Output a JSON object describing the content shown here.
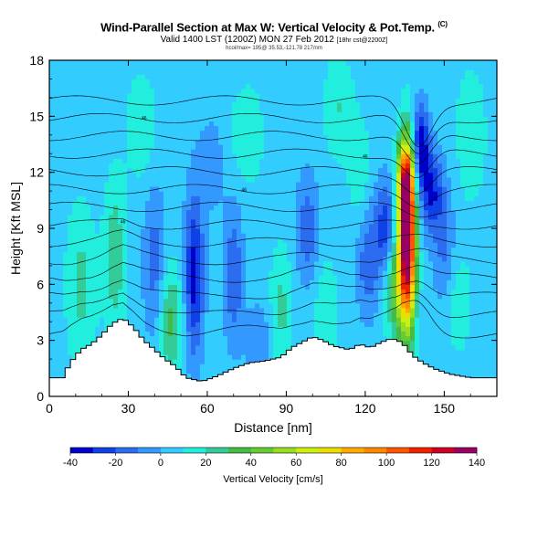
{
  "header": {
    "title": "Wind-Parallel Section at Max W: Vertical Velocity & Pot.Temp.",
    "title_mark": "(C)",
    "valid": "Valid 1400 LST (1200Z) MON 27 Feb 2012",
    "valid_small": "[18hr cst@2200Z]",
    "info": "hcol/max= 195@ 35.53,-121.78 217/nm"
  },
  "chart_data": {
    "type": "heatmap",
    "title": "Wind-Parallel Section at Max W: Vertical Velocity & Pot.Temp.",
    "xlabel": "Distance [nm]",
    "ylabel": "Height [Kft MSL]",
    "xlim": [
      0,
      170
    ],
    "ylim": [
      0,
      18
    ],
    "xticks": [
      0,
      30,
      60,
      90,
      120,
      150
    ],
    "yticks": [
      0,
      3,
      6,
      9,
      12,
      15,
      18
    ],
    "colorbar": {
      "title": "Vertical Velocity [cm/s]",
      "levels": [
        -40,
        -30,
        -20,
        -10,
        0,
        10,
        20,
        30,
        40,
        50,
        60,
        70,
        80,
        90,
        100,
        110,
        120,
        130,
        140
      ],
      "tick_labels": [
        "-40",
        "-20",
        "0",
        "20",
        "40",
        "60",
        "80",
        "100",
        "120",
        "140"
      ],
      "colors": [
        "#0000cc",
        "#1040e8",
        "#2b6cf0",
        "#3399ff",
        "#33ccff",
        "#22eedd",
        "#33cc99",
        "#44bb44",
        "#66cc33",
        "#99dd22",
        "#ccee11",
        "#eedd00",
        "#ffaa00",
        "#ff8800",
        "#ff5500",
        "#ee2200",
        "#cc0022",
        "#990066"
      ]
    },
    "terrain": [
      [
        0,
        1
      ],
      [
        5,
        1
      ],
      [
        8,
        1.8
      ],
      [
        12,
        2.5
      ],
      [
        16,
        2.8
      ],
      [
        20,
        3.3
      ],
      [
        24,
        3.9
      ],
      [
        28,
        4.2
      ],
      [
        32,
        3.7
      ],
      [
        36,
        3.0
      ],
      [
        40,
        2.5
      ],
      [
        44,
        2.0
      ],
      [
        48,
        1.6
      ],
      [
        52,
        1.0
      ],
      [
        58,
        0.8
      ],
      [
        64,
        1.1
      ],
      [
        70,
        1.5
      ],
      [
        76,
        1.8
      ],
      [
        82,
        1.9
      ],
      [
        88,
        2.1
      ],
      [
        92,
        2.6
      ],
      [
        96,
        2.9
      ],
      [
        100,
        3.2
      ],
      [
        104,
        3.0
      ],
      [
        108,
        2.7
      ],
      [
        114,
        2.5
      ],
      [
        118,
        2.8
      ],
      [
        122,
        2.6
      ],
      [
        126,
        2.9
      ],
      [
        130,
        3.1
      ],
      [
        134,
        2.9
      ],
      [
        138,
        2.2
      ],
      [
        142,
        1.8
      ],
      [
        146,
        1.5
      ],
      [
        152,
        1.2
      ],
      [
        160,
        1.0
      ],
      [
        170,
        1.0
      ]
    ],
    "w_blobs": [
      {
        "x": 136,
        "y": 8.5,
        "w": 140,
        "sx": 2.2,
        "sy": 3.2
      },
      {
        "x": 135,
        "y": 11.5,
        "w": 60,
        "sx": 2.2,
        "sy": 1.5
      },
      {
        "x": 132,
        "y": 6.2,
        "w": 40,
        "sx": 3,
        "sy": 2.2
      },
      {
        "x": 141,
        "y": 13.5,
        "w": -45,
        "sx": 2.2,
        "sy": 1.5
      },
      {
        "x": 145,
        "y": 11.0,
        "w": -35,
        "sx": 3,
        "sy": 1.5
      },
      {
        "x": 128,
        "y": 9.0,
        "w": -35,
        "sx": 3,
        "sy": 1.8
      },
      {
        "x": 121,
        "y": 7.2,
        "w": -22,
        "sx": 3,
        "sy": 2.0
      },
      {
        "x": 150,
        "y": 8.0,
        "w": -18,
        "sx": 3,
        "sy": 2.5
      },
      {
        "x": 40,
        "y": 7.2,
        "w": -20,
        "sx": 3,
        "sy": 2.8
      },
      {
        "x": 55,
        "y": 6.5,
        "w": -40,
        "sx": 2.5,
        "sy": 3.0
      },
      {
        "x": 70,
        "y": 6.5,
        "w": -25,
        "sx": 2.5,
        "sy": 2.5
      },
      {
        "x": 25,
        "y": 7.5,
        "w": 22,
        "sx": 3,
        "sy": 3.0
      },
      {
        "x": 12,
        "y": 6.0,
        "w": 18,
        "sx": 4,
        "sy": 3.0
      },
      {
        "x": 46,
        "y": 4.0,
        "w": 28,
        "sx": 3,
        "sy": 2.2
      },
      {
        "x": 88,
        "y": 4.5,
        "w": 18,
        "sx": 3,
        "sy": 2.5
      },
      {
        "x": 105,
        "y": 4.5,
        "w": 15,
        "sx": 3,
        "sy": 2.0
      },
      {
        "x": 98,
        "y": 9.0,
        "w": -22,
        "sx": 3,
        "sy": 2.0
      },
      {
        "x": 35,
        "y": 14.5,
        "w": 14,
        "sx": 4,
        "sy": 2.0
      },
      {
        "x": 75,
        "y": 14.0,
        "w": 12,
        "sx": 5,
        "sy": 2.0
      },
      {
        "x": 110,
        "y": 15.5,
        "w": 15,
        "sx": 4,
        "sy": 2.0
      },
      {
        "x": 160,
        "y": 14.0,
        "w": 10,
        "sx": 5,
        "sy": 3.0
      },
      {
        "x": 118,
        "y": 12.0,
        "w": 12,
        "sx": 3,
        "sy": 2.0
      },
      {
        "x": 62,
        "y": 12.5,
        "w": -10,
        "sx": 4,
        "sy": 2.0
      },
      {
        "x": 155,
        "y": 5.0,
        "w": 12,
        "sx": 4,
        "sy": 2.0
      },
      {
        "x": 80,
        "y": 3.0,
        "w": -12,
        "sx": 4,
        "sy": 1.5
      }
    ],
    "theta_label": "46",
    "theta_levels_count": 14
  }
}
